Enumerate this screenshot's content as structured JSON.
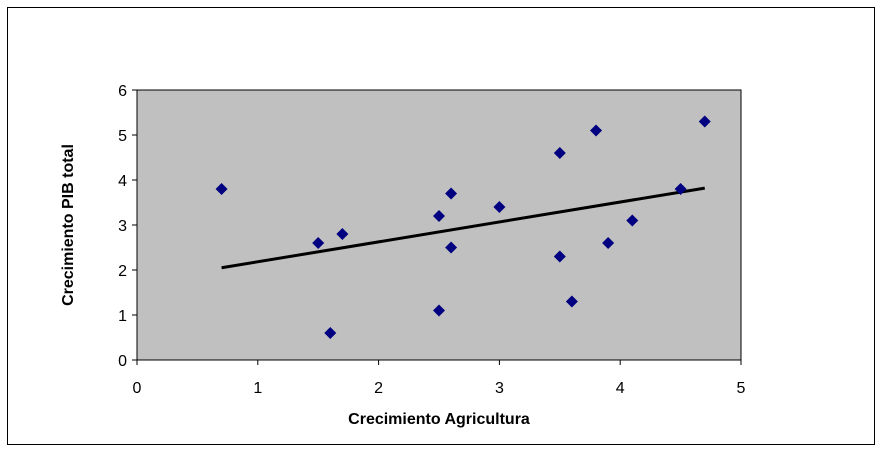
{
  "chart_data": {
    "type": "scatter",
    "title": "",
    "xlabel": "Crecimiento Agricultura",
    "ylabel": "Crecimiento PIB total",
    "xlim": [
      0,
      5
    ],
    "ylim": [
      0,
      6
    ],
    "x_ticks": [
      0,
      1,
      2,
      3,
      4,
      5
    ],
    "y_ticks": [
      0,
      1,
      2,
      3,
      4,
      5,
      6
    ],
    "grid": false,
    "legend": "none",
    "points": [
      {
        "x": 0.7,
        "y": 3.8
      },
      {
        "x": 1.5,
        "y": 2.6
      },
      {
        "x": 1.6,
        "y": 0.6
      },
      {
        "x": 1.7,
        "y": 2.8
      },
      {
        "x": 2.5,
        "y": 3.2
      },
      {
        "x": 2.5,
        "y": 1.1
      },
      {
        "x": 2.6,
        "y": 3.7
      },
      {
        "x": 2.6,
        "y": 2.5
      },
      {
        "x": 3.0,
        "y": 3.4
      },
      {
        "x": 3.5,
        "y": 4.6
      },
      {
        "x": 3.5,
        "y": 2.3
      },
      {
        "x": 3.6,
        "y": 1.3
      },
      {
        "x": 3.8,
        "y": 5.1
      },
      {
        "x": 3.9,
        "y": 2.6
      },
      {
        "x": 4.1,
        "y": 3.1
      },
      {
        "x": 4.5,
        "y": 3.8
      },
      {
        "x": 4.7,
        "y": 5.3
      }
    ],
    "trendline": {
      "x": [
        0.7,
        4.7
      ],
      "y": [
        2.05,
        3.82
      ]
    },
    "colors": {
      "plot_background": "#c0c0c0",
      "marker": "#000080",
      "trendline": "#000000",
      "axis": "#000000"
    }
  }
}
